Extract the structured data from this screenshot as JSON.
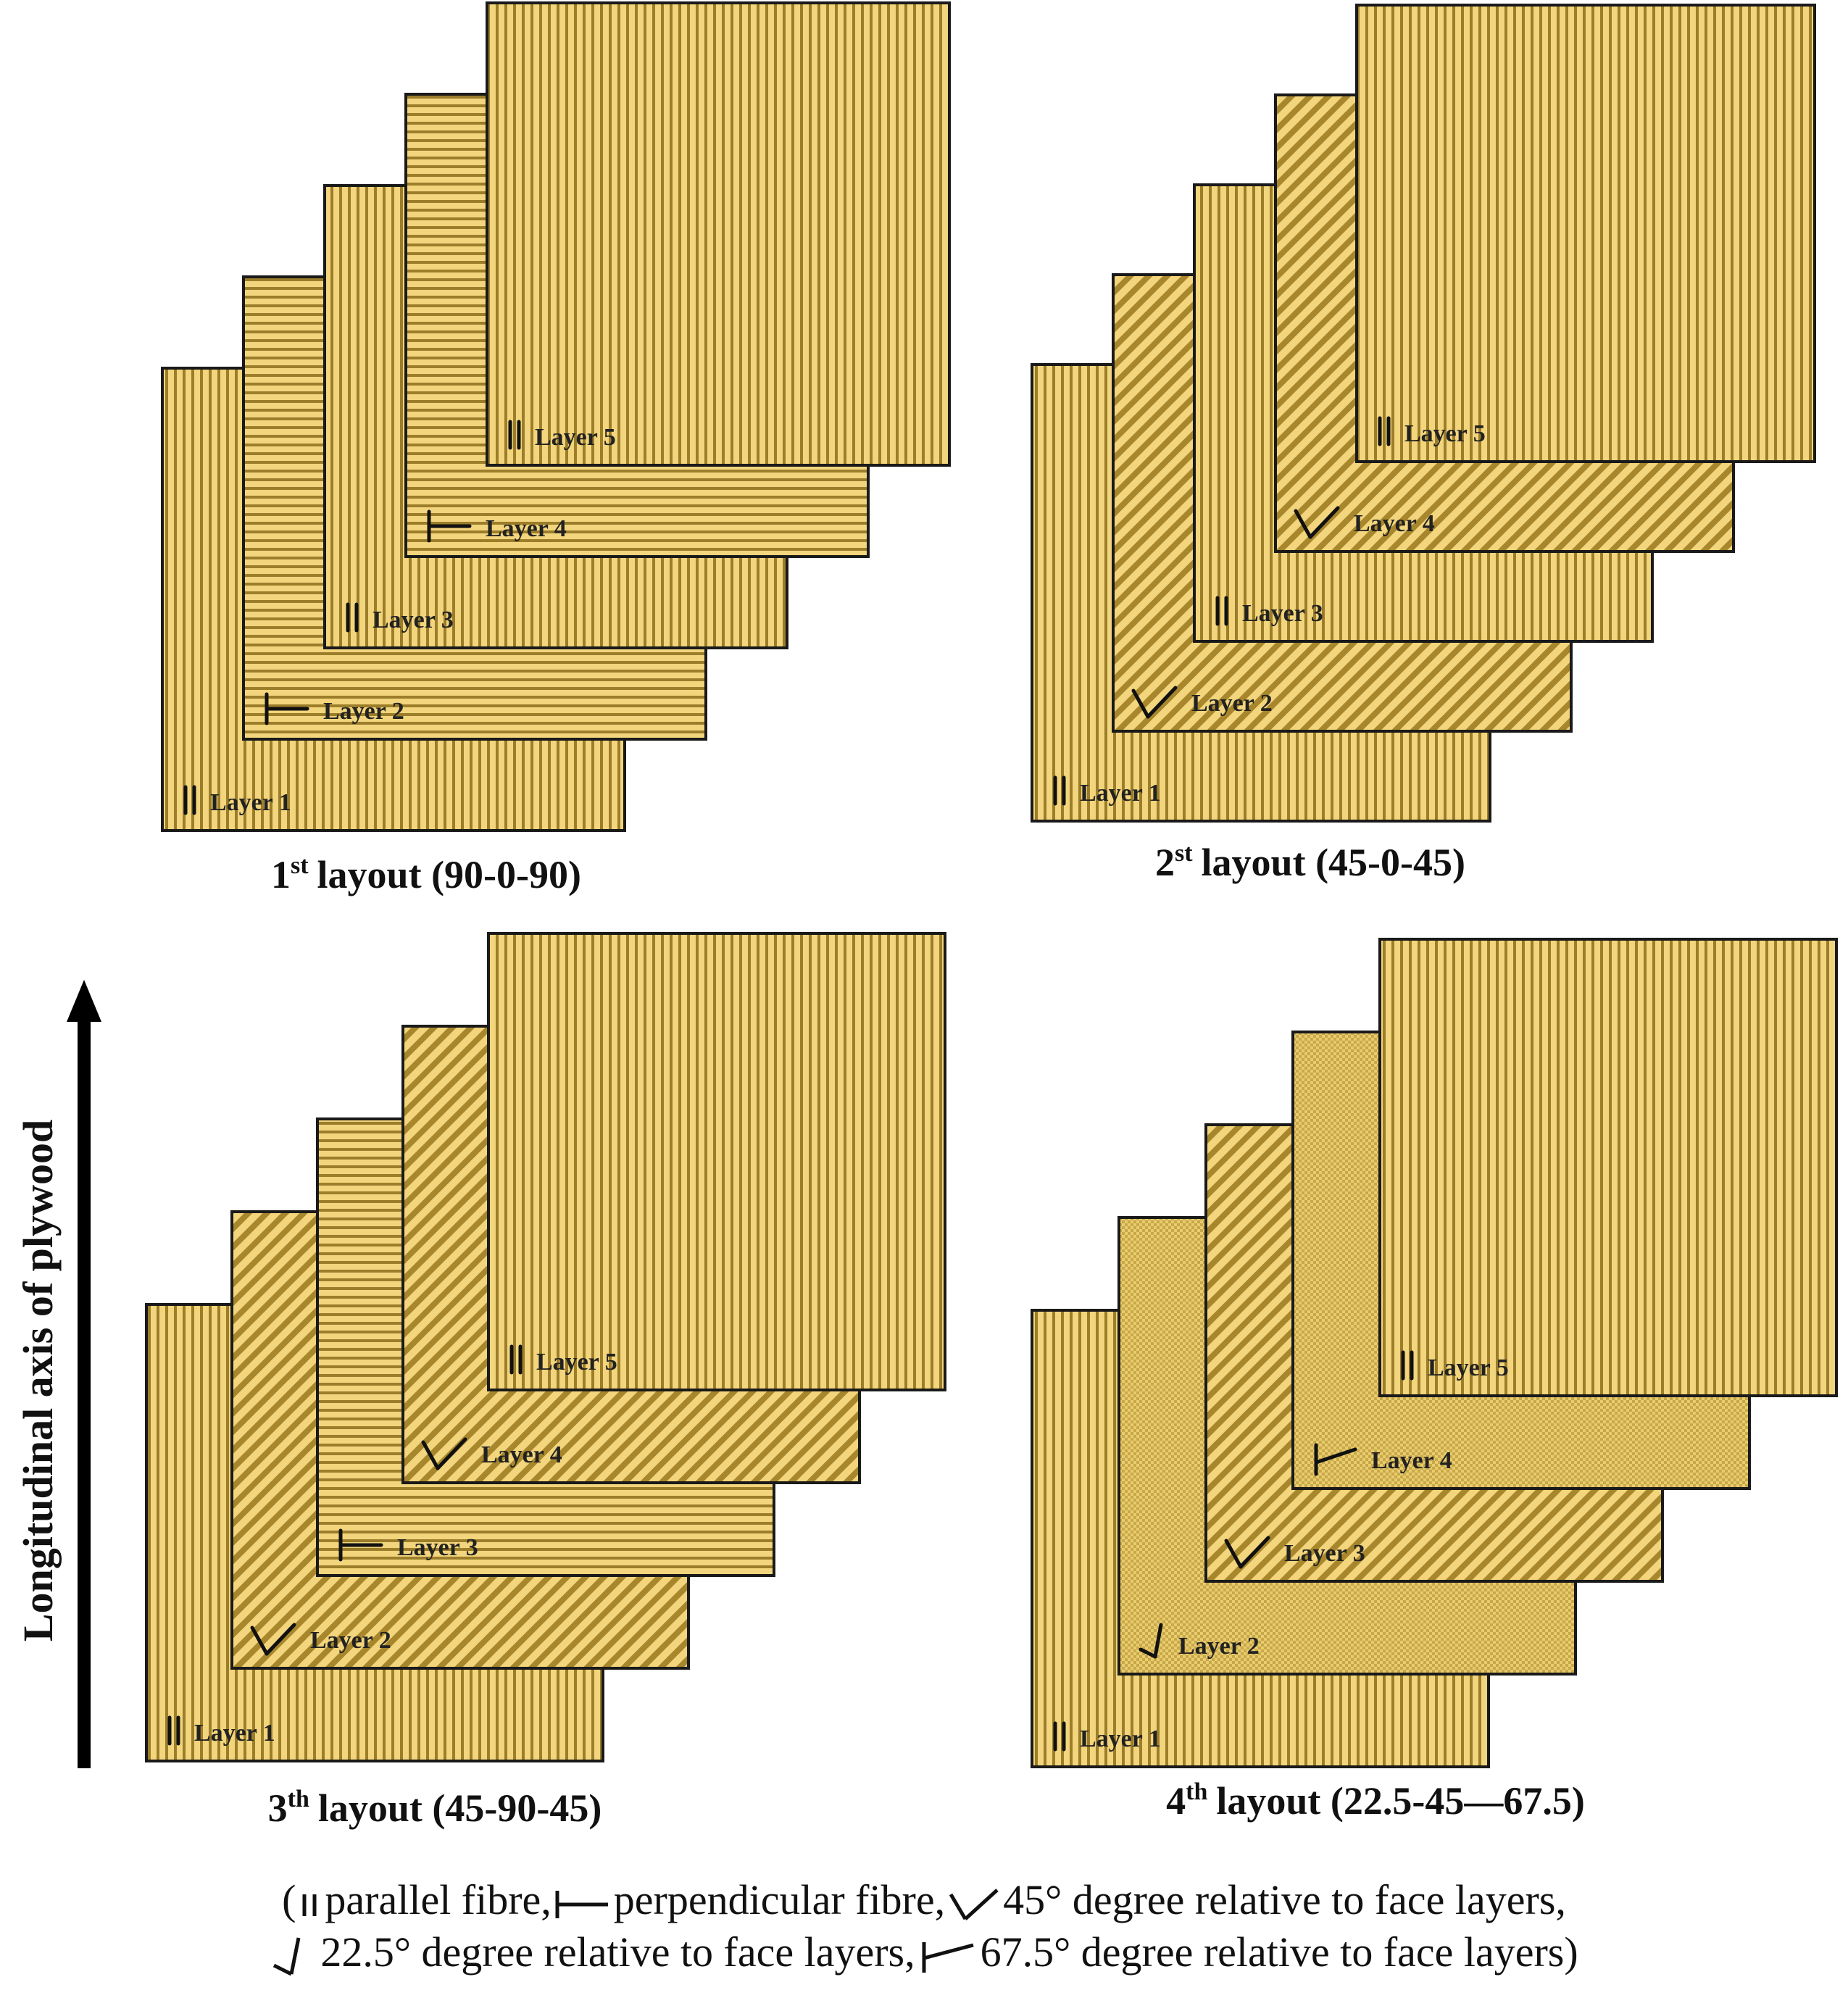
{
  "figure": {
    "axis_label": "Longitudinal axis of plywood",
    "colors": {
      "fill": "#f2d57c",
      "stripe": "#9b7d2a",
      "outline": "#1a1a1a",
      "text": "#111111"
    },
    "layouts": [
      {
        "sup": "st",
        "num": "1",
        "text": "layout (90-0-90)",
        "layers": [
          {
            "label": "Layer 1",
            "pattern": "vertical",
            "symbol": "parallel"
          },
          {
            "label": "Layer 2",
            "pattern": "horizontal",
            "symbol": "perpendicular"
          },
          {
            "label": "Layer 3",
            "pattern": "vertical",
            "symbol": "parallel"
          },
          {
            "label": "Layer 4",
            "pattern": "horizontal",
            "symbol": "perpendicular"
          },
          {
            "label": "Layer 5",
            "pattern": "vertical",
            "symbol": "parallel"
          }
        ]
      },
      {
        "sup": "st",
        "num": "2",
        "text": "layout (45-0-45)",
        "layers": [
          {
            "label": "Layer 1",
            "pattern": "vertical",
            "symbol": "parallel"
          },
          {
            "label": "Layer 2",
            "pattern": "diag45",
            "symbol": "deg45"
          },
          {
            "label": "Layer 3",
            "pattern": "vertical",
            "symbol": "parallel"
          },
          {
            "label": "Layer 4",
            "pattern": "diag45",
            "symbol": "deg45"
          },
          {
            "label": "Layer 5",
            "pattern": "vertical",
            "symbol": "parallel"
          }
        ]
      },
      {
        "sup": "th",
        "num": "3",
        "text": "layout (45-90-45)",
        "layers": [
          {
            "label": "Layer 1",
            "pattern": "vertical",
            "symbol": "parallel"
          },
          {
            "label": "Layer 2",
            "pattern": "diag45",
            "symbol": "deg45"
          },
          {
            "label": "Layer 3",
            "pattern": "horizontal",
            "symbol": "perpendicular"
          },
          {
            "label": "Layer 4",
            "pattern": "diag45",
            "symbol": "deg45"
          },
          {
            "label": "Layer 5",
            "pattern": "vertical",
            "symbol": "parallel"
          }
        ]
      },
      {
        "sup": "th",
        "num": "4",
        "text": "layout (22.5-45—67.5)",
        "layers": [
          {
            "label": "Layer 1",
            "pattern": "vertical",
            "symbol": "parallel"
          },
          {
            "label": "Layer 2",
            "pattern": "dots",
            "symbol": "deg22"
          },
          {
            "label": "Layer 3",
            "pattern": "diag45",
            "symbol": "deg45"
          },
          {
            "label": "Layer 4",
            "pattern": "dots",
            "symbol": "deg67"
          },
          {
            "label": "Layer 5",
            "pattern": "vertical",
            "symbol": "parallel"
          }
        ]
      }
    ]
  },
  "legend": {
    "open": "(",
    "parallel": "parallel fibre,",
    "perpendicular": "perpendicular fibre,",
    "deg45": "45° degree relative to face layers,",
    "deg22": "22.5° degree relative to face layers,",
    "deg67": "67.5° degree relative to face layers)"
  }
}
